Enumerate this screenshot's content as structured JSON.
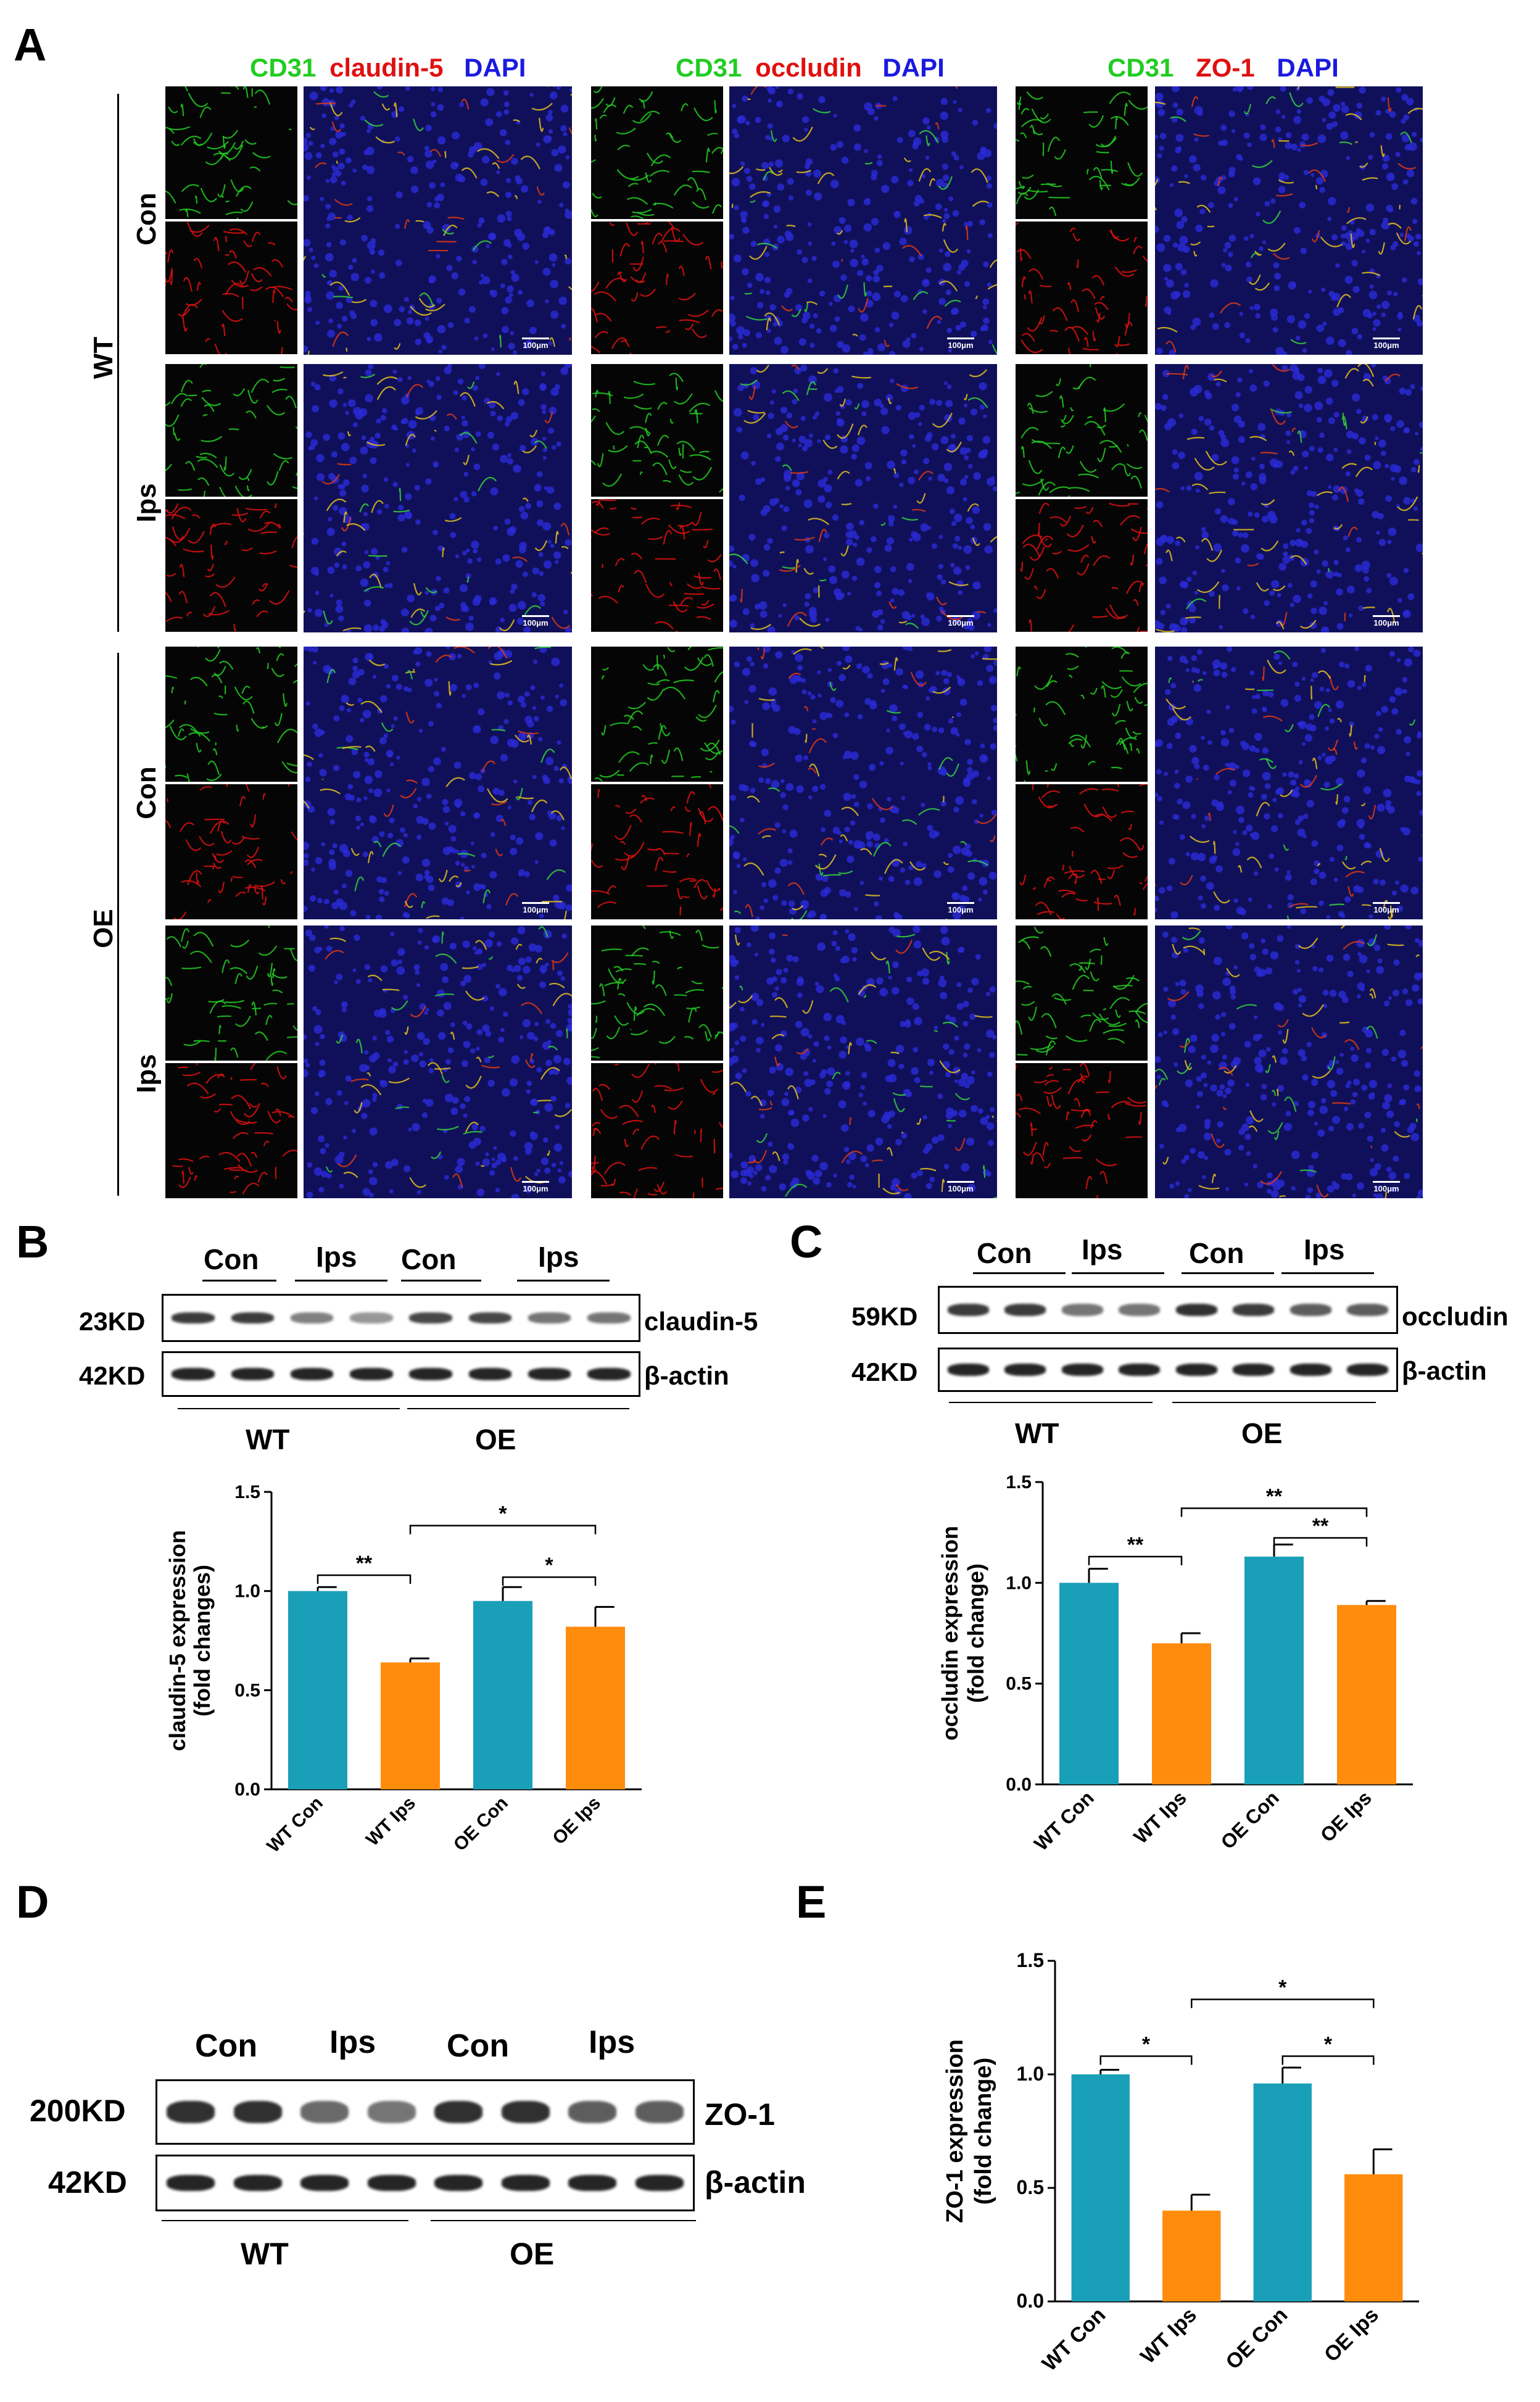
{
  "panel_labels": {
    "A": "A",
    "B": "B",
    "C": "C",
    "D": "D",
    "E": "E"
  },
  "panel_A": {
    "column_headers": [
      {
        "green": "CD31",
        "red": "claudin-5",
        "blue": "DAPI"
      },
      {
        "green": "CD31",
        "red": "occludin",
        "blue": "DAPI"
      },
      {
        "green": "CD31",
        "red": "ZO-1",
        "blue": "DAPI"
      }
    ],
    "group_labels": [
      "WT",
      "OE"
    ],
    "row_labels": [
      "Con",
      "Ips",
      "Con",
      "Ips"
    ],
    "scale_bar_label": "100μm",
    "colors": {
      "green": "#22cc22",
      "red": "#e01010",
      "blue": "#1a1ae0"
    }
  },
  "panel_B": {
    "lane_groups": [
      "Con",
      "Ips",
      "Con",
      "Ips"
    ],
    "bands": [
      {
        "kd": "23KD",
        "protein": "claudin-5"
      },
      {
        "kd": "42KD",
        "protein": "β-actin"
      }
    ],
    "genotypes": [
      "WT",
      "OE"
    ]
  },
  "panel_C": {
    "lane_groups": [
      "Con",
      "Ips",
      "Con",
      "Ips"
    ],
    "bands": [
      {
        "kd": "59KD",
        "protein": "occludin"
      },
      {
        "kd": "42KD",
        "protein": "β-actin"
      }
    ],
    "genotypes": [
      "WT",
      "OE"
    ]
  },
  "panel_D": {
    "lane_groups": [
      "Con",
      "Ips",
      "Con",
      "Ips"
    ],
    "bands": [
      {
        "kd": "200KD",
        "protein": "ZO-1"
      },
      {
        "kd": "42KD",
        "protein": "β-actin"
      }
    ],
    "genotypes": [
      "WT",
      "OE"
    ]
  },
  "bar_colors": {
    "con": "#1a9fb8",
    "ips": "#ff8c0d"
  },
  "chart_data": [
    {
      "type": "bar",
      "panel": "B",
      "categories": [
        "WT Con",
        "WT Ips",
        "OE Con",
        "OE Ips"
      ],
      "values": [
        1.0,
        0.64,
        0.95,
        0.82
      ],
      "errors": [
        0.02,
        0.02,
        0.07,
        0.1
      ],
      "ylabel_line1": "claudin-5 expression",
      "ylabel_line2": "(fold changes)",
      "ylim": [
        0,
        1.5
      ],
      "yticks": [
        "0.0",
        "0.5",
        "1.0",
        "1.5"
      ],
      "significance": [
        {
          "from": 0,
          "to": 1,
          "label": "**"
        },
        {
          "from": 1,
          "to": 3,
          "label": "*"
        },
        {
          "from": 2,
          "to": 3,
          "label": "*"
        }
      ]
    },
    {
      "type": "bar",
      "panel": "C",
      "categories": [
        "WT Con",
        "WT Ips",
        "OE Con",
        "OE Ips"
      ],
      "values": [
        1.0,
        0.7,
        1.13,
        0.89
      ],
      "errors": [
        0.07,
        0.05,
        0.06,
        0.02
      ],
      "ylabel_line1": "occludin expression",
      "ylabel_line2": "(fold change)",
      "ylim": [
        0,
        1.5
      ],
      "yticks": [
        "0.0",
        "0.5",
        "1.0",
        "1.5"
      ],
      "significance": [
        {
          "from": 0,
          "to": 1,
          "label": "**"
        },
        {
          "from": 1,
          "to": 3,
          "label": "**"
        },
        {
          "from": 2,
          "to": 3,
          "label": "**"
        }
      ]
    },
    {
      "type": "bar",
      "panel": "E",
      "categories": [
        "WT Con",
        "WT Ips",
        "OE Con",
        "OE Ips"
      ],
      "values": [
        1.0,
        0.4,
        0.96,
        0.56
      ],
      "errors": [
        0.02,
        0.07,
        0.07,
        0.11
      ],
      "ylabel_line1": "ZO-1 expression",
      "ylabel_line2": "(fold change)",
      "ylim": [
        0,
        1.5
      ],
      "yticks": [
        "0.0",
        "0.5",
        "1.0",
        "1.5"
      ],
      "significance": [
        {
          "from": 0,
          "to": 1,
          "label": "*"
        },
        {
          "from": 1,
          "to": 3,
          "label": "*"
        },
        {
          "from": 2,
          "to": 3,
          "label": "*"
        }
      ]
    }
  ]
}
